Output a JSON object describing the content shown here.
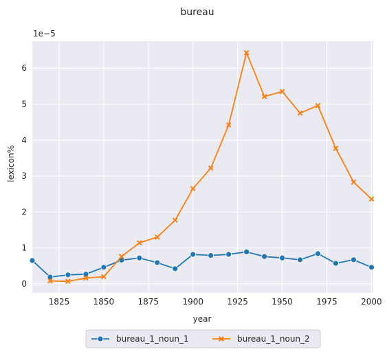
{
  "chart_data": {
    "type": "line",
    "title": "bureau",
    "xlabel": "year",
    "ylabel": "lexicon%",
    "y_scale_label": "1e−5",
    "xlim": [
      1810,
      2001
    ],
    "ylim": [
      -0.25,
      6.75
    ],
    "x_ticks": [
      1825,
      1850,
      1875,
      1900,
      1925,
      1950,
      1975,
      2000
    ],
    "y_ticks": [
      0,
      1,
      2,
      3,
      4,
      5,
      6
    ],
    "grid": true,
    "legend_position": "bottom-center",
    "x": [
      1810,
      1820,
      1830,
      1840,
      1850,
      1860,
      1870,
      1880,
      1890,
      1900,
      1910,
      1920,
      1930,
      1940,
      1950,
      1960,
      1970,
      1980,
      1990,
      2000
    ],
    "series": [
      {
        "name": "bureau_1_noun_1",
        "color": "#1f77b4",
        "marker": "circle",
        "values": [
          0.65,
          0.19,
          0.25,
          0.27,
          0.46,
          0.66,
          0.72,
          0.59,
          0.42,
          0.82,
          0.79,
          0.82,
          0.89,
          0.76,
          0.72,
          0.67,
          0.84,
          0.57,
          0.67,
          0.46
        ]
      },
      {
        "name": "bureau_1_noun_2",
        "color": "#ff7f0e",
        "marker": "x",
        "values": [
          null,
          0.08,
          0.07,
          0.16,
          0.2,
          0.76,
          1.14,
          1.3,
          1.77,
          2.65,
          3.22,
          4.42,
          6.43,
          5.21,
          5.35,
          4.75,
          4.96,
          3.77,
          2.83,
          2.36
        ]
      }
    ]
  }
}
